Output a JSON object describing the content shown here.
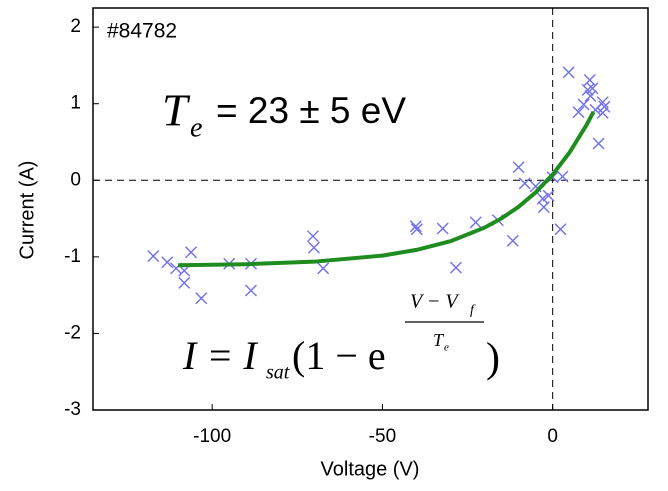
{
  "chart_data": {
    "type": "scatter",
    "xlabel": "Voltage (V)",
    "ylabel": "Current (A)",
    "xlim": [
      -135,
      28
    ],
    "ylim": [
      -3,
      2.25
    ],
    "xticks": [
      -100,
      -50,
      0
    ],
    "yticks": [
      -3,
      -2,
      -1,
      0,
      1,
      2
    ],
    "vlines": [
      0
    ],
    "hlines": [
      0
    ],
    "series": [
      {
        "kind": "scatter",
        "color": "#6f6ff0",
        "x": [
          -117.3,
          -113.2,
          -110.6,
          -108.2,
          -108.2,
          -106.2,
          -103.2,
          -95,
          -88.6,
          -88.6,
          -70.4,
          -70.1,
          -67.4,
          -40.2,
          -39.9,
          -32.3,
          -28.4,
          -22.6,
          -16.1,
          -11.7,
          -10,
          -8.2,
          -5,
          -2.9,
          -2.6,
          -1.2,
          0,
          2.3,
          2.9,
          4.7,
          7.6,
          9.1,
          10.3,
          10.9,
          11.1,
          11.7,
          12.6,
          13.5,
          14.7,
          14.7,
          15.2
        ],
        "values": [
          -0.99,
          -1.07,
          -1.15,
          -1.34,
          -1.18,
          -0.94,
          -1.54,
          -1.09,
          -1.44,
          -1.09,
          -0.73,
          -0.88,
          -1.15,
          -0.6,
          -0.64,
          -0.63,
          -1.14,
          -0.55,
          -0.52,
          -0.79,
          0.17,
          -0.04,
          -0.08,
          -0.24,
          -0.35,
          -0.2,
          0.04,
          -0.64,
          0.05,
          1.41,
          0.89,
          0.99,
          1.18,
          1.31,
          1.1,
          1.2,
          0.92,
          0.48,
          1.02,
          0.88,
          0.96
        ]
      },
      {
        "kind": "line",
        "color": "#1e8c1e",
        "x": [
          -110,
          -90,
          -70,
          -50,
          -40,
          -30,
          -20,
          -15,
          -10,
          -5,
          0,
          5,
          10,
          12
        ],
        "values": [
          -1.11,
          -1.096,
          -1.063,
          -0.984,
          -0.909,
          -0.796,
          -0.618,
          -0.497,
          -0.346,
          -0.158,
          0.075,
          0.366,
          0.727,
          0.895
        ]
      }
    ],
    "annotations": {
      "shot": "#84782",
      "te_symbol": "T",
      "te_subscript": "e",
      "te_text": "= 23 ± 5 eV",
      "formula": [
        "I = I",
        "sat",
        "(1 − e",
        "V − V",
        "f",
        "T",
        "e",
        ")"
      ]
    }
  }
}
